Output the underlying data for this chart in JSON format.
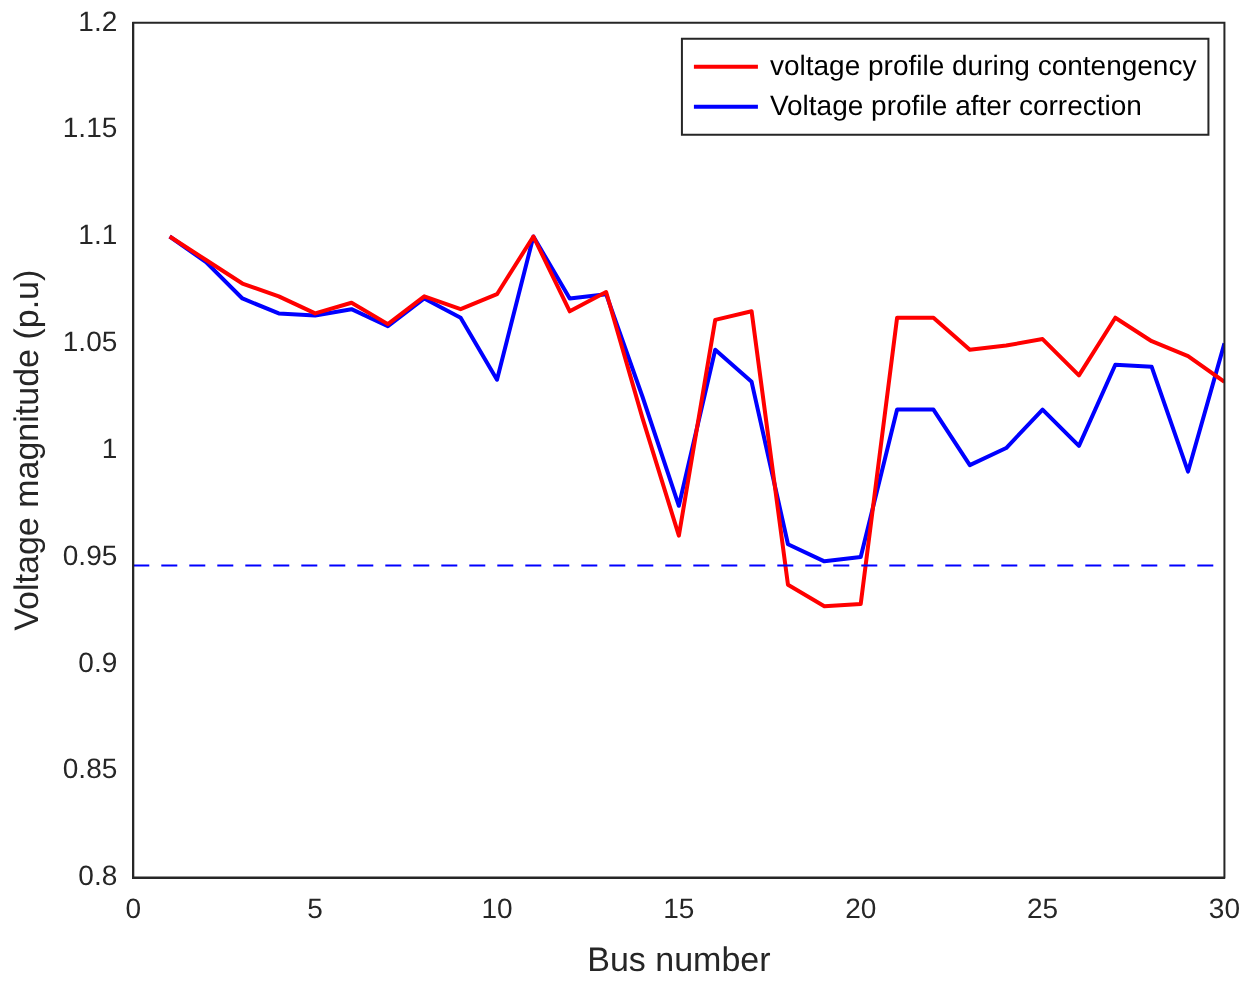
{
  "chart_data": {
    "type": "line",
    "xlabel": "Bus number",
    "ylabel": "Voltage magnitude (p.u)",
    "x": [
      1,
      2,
      3,
      4,
      5,
      6,
      7,
      8,
      9,
      10,
      11,
      12,
      13,
      14,
      15,
      16,
      17,
      18,
      19,
      20,
      21,
      22,
      23,
      24,
      25,
      26,
      27,
      28,
      29,
      30
    ],
    "series": [
      {
        "name": "voltage profile during contengency",
        "color": "#ff0000",
        "values": [
          1.1,
          1.089,
          1.078,
          1.072,
          1.064,
          1.069,
          1.059,
          1.072,
          1.066,
          1.073,
          1.1,
          1.065,
          1.074,
          1.015,
          0.96,
          1.061,
          1.065,
          0.937,
          0.927,
          0.928,
          1.062,
          1.062,
          1.047,
          1.049,
          1.052,
          1.035,
          1.062,
          1.051,
          1.044,
          1.032
        ]
      },
      {
        "name": "Voltage profile after correction",
        "color": "#0000ff",
        "values": [
          1.1,
          1.088,
          1.071,
          1.064,
          1.063,
          1.066,
          1.058,
          1.071,
          1.062,
          1.033,
          1.1,
          1.071,
          1.073,
          1.025,
          0.974,
          1.047,
          1.032,
          0.956,
          0.948,
          0.95,
          1.019,
          1.019,
          0.993,
          1.001,
          1.019,
          1.002,
          1.04,
          1.039,
          0.99,
          1.05
        ]
      }
    ],
    "ref_lines": [
      {
        "axis": "y",
        "value": 0.946,
        "color": "#0000ff",
        "line_style": "dashed"
      }
    ],
    "xlim": [
      0,
      30
    ],
    "xticks": [
      0,
      5,
      10,
      15,
      20,
      25,
      30
    ],
    "ylim": [
      0.8,
      1.2
    ],
    "yticks": [
      0.8,
      0.85,
      0.9,
      0.95,
      1,
      1.05,
      1.1,
      1.15,
      1.2
    ],
    "grid": false,
    "legend": "top right",
    "marker": "none",
    "line_style": "solid"
  }
}
